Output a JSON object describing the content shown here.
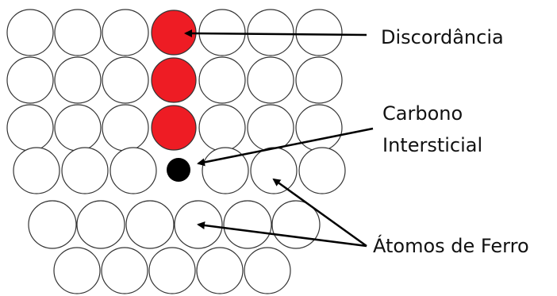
{
  "labels": {
    "dislocation": "Discordância",
    "carbon": [
      "Carbono",
      "Intersticial"
    ],
    "iron": "Átomos de Ferro"
  }
}
